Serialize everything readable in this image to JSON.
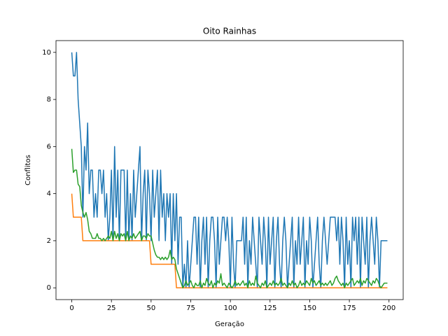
{
  "chart_data": {
    "type": "line",
    "title": "Oito Rainhas",
    "x_label": "Geração",
    "y_label": "Conflitos",
    "x": [
      0,
      1,
      2,
      3,
      4,
      5,
      6,
      7,
      8,
      9,
      10,
      11,
      12,
      13,
      14,
      15,
      16,
      17,
      18,
      19,
      20,
      21,
      22,
      23,
      24,
      25,
      26,
      27,
      28,
      29,
      30,
      31,
      32,
      33,
      34,
      35,
      36,
      37,
      38,
      39,
      40,
      41,
      42,
      43,
      44,
      45,
      46,
      47,
      48,
      49,
      50,
      51,
      52,
      53,
      54,
      55,
      56,
      57,
      58,
      59,
      60,
      61,
      62,
      63,
      64,
      65,
      66,
      67,
      68,
      69,
      70,
      71,
      72,
      73,
      74,
      75,
      76,
      77,
      78,
      79,
      80,
      81,
      82,
      83,
      84,
      85,
      86,
      87,
      88,
      89,
      90,
      91,
      92,
      93,
      94,
      95,
      96,
      97,
      98,
      99,
      100,
      101,
      102,
      103,
      104,
      105,
      106,
      107,
      108,
      109,
      110,
      111,
      112,
      113,
      114,
      115,
      116,
      117,
      118,
      119,
      120,
      121,
      122,
      123,
      124,
      125,
      126,
      127,
      128,
      129,
      130,
      131,
      132,
      133,
      134,
      135,
      136,
      137,
      138,
      139,
      140,
      141,
      142,
      143,
      144,
      145,
      146,
      147,
      148,
      149,
      150,
      151,
      152,
      153,
      154,
      155,
      156,
      157,
      158,
      159,
      160,
      161,
      162,
      163,
      164,
      165,
      166,
      167,
      168,
      169,
      170,
      171,
      172,
      173,
      174,
      175,
      176,
      177,
      178,
      179,
      180,
      181,
      182,
      183,
      184,
      185,
      186,
      187,
      188,
      189,
      190,
      191,
      192,
      193,
      194,
      195,
      196,
      197,
      198,
      199
    ],
    "series": [
      {
        "color": "#1f77b4",
        "values": [
          10,
          9,
          9,
          10,
          8,
          7,
          6,
          3,
          6,
          5,
          7,
          4,
          5,
          5,
          3,
          4,
          3,
          5,
          5,
          4,
          5,
          3,
          4,
          2,
          3,
          5,
          2,
          6,
          3,
          5,
          2,
          5,
          5,
          5,
          2,
          5,
          2,
          4,
          2,
          5,
          3,
          4,
          5,
          6,
          2,
          4,
          5,
          2,
          5,
          4,
          2,
          5,
          3,
          4,
          5,
          2,
          5,
          3,
          4,
          2,
          4,
          3,
          4,
          1,
          4,
          2,
          4,
          1,
          3,
          3,
          0,
          1,
          0,
          2,
          0,
          1,
          2,
          3,
          3,
          1,
          3,
          0,
          2,
          3,
          1,
          3,
          0,
          2,
          3,
          3,
          2,
          0,
          3,
          1,
          2,
          3,
          3,
          2,
          3,
          2,
          0,
          3,
          1,
          0,
          2,
          2,
          2,
          2,
          3,
          1,
          3,
          0,
          2,
          1,
          3,
          2,
          1,
          0,
          3,
          2,
          1,
          3,
          2,
          0,
          3,
          1,
          2,
          3,
          0,
          2,
          3,
          1,
          0,
          2,
          3,
          2,
          0,
          1,
          2,
          3,
          0,
          2,
          1,
          3,
          1,
          2,
          3,
          0,
          2,
          1,
          3,
          2,
          0,
          1,
          2,
          3,
          1,
          0,
          2,
          3,
          2,
          1,
          2,
          3,
          3,
          3,
          3,
          2,
          3,
          1,
          3,
          2,
          0,
          3,
          1,
          2,
          0,
          3,
          2,
          3,
          1,
          3,
          0,
          3,
          2,
          1,
          3,
          0,
          2,
          3,
          2,
          1,
          3,
          2,
          0,
          2,
          2,
          2,
          2,
          2
        ]
      },
      {
        "color": "#ff7f0e",
        "values": [
          4,
          3,
          3,
          3,
          3,
          3,
          3,
          2,
          2,
          2,
          2,
          2,
          2,
          2,
          2,
          2,
          2,
          2,
          2,
          2,
          2,
          2,
          2,
          2,
          2,
          2,
          2,
          2,
          2,
          2,
          2,
          2,
          2,
          2,
          2,
          2,
          2,
          2,
          2,
          2,
          2,
          2,
          2,
          2,
          2,
          2,
          2,
          2,
          2,
          2,
          1,
          1,
          1,
          1,
          1,
          1,
          1,
          1,
          1,
          1,
          1,
          1,
          1,
          1,
          1,
          1,
          0,
          0,
          0,
          0,
          0,
          0,
          0,
          0,
          0,
          0,
          0,
          0,
          0,
          0,
          0,
          0,
          0,
          0,
          0,
          0,
          0,
          0,
          0,
          0,
          0,
          0,
          0,
          0,
          0,
          0,
          0,
          0,
          0,
          0,
          0,
          0,
          0,
          0,
          0,
          0,
          0,
          0,
          0,
          0,
          0,
          0,
          0,
          0,
          0,
          0,
          0,
          0,
          0,
          0,
          0,
          0,
          0,
          0,
          0,
          0,
          0,
          0,
          0,
          0,
          0,
          0,
          0,
          0,
          0,
          0,
          0,
          0,
          0,
          0,
          0,
          0,
          0,
          0,
          0,
          0,
          0,
          0,
          0,
          0,
          0,
          0,
          0,
          0,
          0,
          0,
          0,
          0,
          0,
          0,
          0,
          0,
          0,
          0,
          0,
          0,
          0,
          0,
          0,
          0,
          0,
          0,
          0,
          0,
          0,
          0,
          0,
          0,
          0,
          0,
          0,
          0,
          0,
          0,
          0,
          0,
          0,
          0,
          0,
          0,
          0,
          0,
          0,
          0,
          0,
          0,
          0,
          0,
          0,
          0
        ]
      },
      {
        "color": "#2ca02c",
        "values": [
          5.9,
          4.9,
          5,
          5,
          4.4,
          4.3,
          3.5,
          3.2,
          3,
          3.2,
          2.9,
          2.4,
          2.3,
          2.1,
          2.1,
          2.1,
          2.3,
          2.1,
          2.1,
          2,
          2.1,
          2,
          2.1,
          2.2,
          2.1,
          2.4,
          2,
          2.4,
          2.1,
          2.3,
          2,
          2.3,
          2.2,
          2.3,
          2,
          2.4,
          2,
          2.2,
          2.1,
          2.3,
          2.1,
          2.2,
          2.3,
          2.4,
          2,
          2.2,
          2.2,
          2.1,
          2.3,
          2.2,
          2.2,
          1.9,
          1.6,
          1.4,
          1.3,
          1.3,
          1.2,
          1.3,
          1.2,
          1.3,
          1.2,
          1.3,
          1.6,
          1.2,
          1.3,
          1.2,
          0.8,
          0.6,
          0.4,
          0.2,
          0,
          0.1,
          0.3,
          0.1,
          0.2,
          0.3,
          0.1,
          0,
          0.2,
          0.1,
          0.1,
          0.3,
          0,
          0.2,
          0.1,
          0.4,
          0.2,
          0.1,
          0.3,
          0,
          0.2,
          0.1,
          0.3,
          0.2,
          0.6,
          0.1,
          0.2,
          0.1,
          0,
          0.2,
          0.1,
          0,
          0.1,
          0.3,
          0.1,
          0.2,
          0.1,
          0.2,
          0.3,
          0.1,
          0.2,
          0,
          0.3,
          0.1,
          0.2,
          0.1,
          0.5,
          0.2,
          0.1,
          0,
          0.2,
          0.1,
          0.3,
          0,
          0.1,
          0.2,
          0.1,
          0.3,
          0.1,
          0.2,
          0.1,
          0.2,
          0.4,
          0.1,
          0.2,
          0.1,
          0,
          0.2,
          0.1,
          0.3,
          0.1,
          0.2,
          0,
          0.1,
          0.3,
          0.1,
          0.2,
          0.1,
          0.3,
          0.2,
          0.1,
          0.4,
          0.2,
          0.3,
          0.1,
          0.2,
          0.3,
          0.1,
          0.2,
          0.1,
          0.2,
          0.1,
          0.2,
          0.3,
          0.1,
          0.2,
          0.4,
          0.5,
          0.3,
          0.2,
          0.1,
          0.2,
          0,
          0.2,
          0.1,
          0.2,
          0.3,
          0.4,
          0.1,
          0.2,
          0.3,
          0.2,
          0.4,
          0.1,
          0.3,
          0.2,
          0.4,
          0.3,
          0.2,
          0.1,
          0.3,
          0.2,
          0.4,
          0.3,
          0.1,
          0,
          0.1,
          0.2,
          0.2,
          0.2
        ]
      }
    ],
    "xlim": [
      -9.95,
      208.95
    ],
    "ylim": [
      -0.5,
      10.5
    ],
    "xticks": [
      0,
      25,
      50,
      75,
      100,
      125,
      150,
      175,
      200
    ],
    "yticks": [
      0,
      2,
      4,
      6,
      8,
      10
    ]
  }
}
